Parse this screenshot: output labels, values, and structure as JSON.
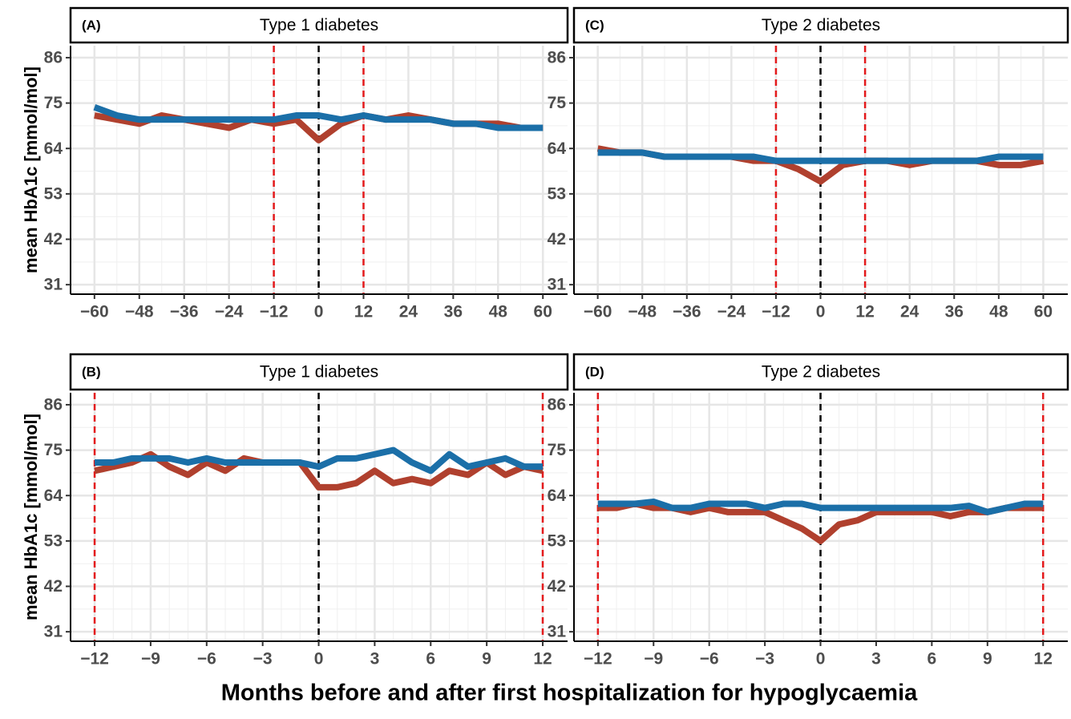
{
  "xlabel": "Months before and after first hospitalization for hypoglycaemia",
  "chart_data": [
    {
      "type": "line",
      "panel_label": "(A)",
      "title": "Type 1 diabetes",
      "ylabel": "mean HbA1c [mmol/mol]",
      "x": [
        -60,
        -54,
        -48,
        -42,
        -36,
        -30,
        -24,
        -18,
        -12,
        -6,
        0,
        6,
        12,
        18,
        24,
        30,
        36,
        42,
        48,
        54,
        60
      ],
      "series": [
        {
          "color": "#b0402e",
          "values": [
            72,
            71,
            70,
            72,
            71,
            70,
            69,
            71,
            70,
            71,
            66,
            70,
            72,
            71,
            72,
            71,
            70,
            70,
            70,
            69,
            69
          ]
        },
        {
          "color": "#1b6fa8",
          "values": [
            74,
            72,
            71,
            71,
            71,
            71,
            71,
            71,
            71,
            72,
            72,
            71,
            72,
            71,
            71,
            71,
            70,
            70,
            69,
            69,
            69
          ]
        }
      ],
      "xlim": [
        -66.4,
        66.6
      ],
      "xticks": [
        -60,
        -48,
        -36,
        -24,
        -12,
        0,
        12,
        24,
        36,
        48,
        60
      ],
      "ylim": [
        28.7,
        88.9
      ],
      "yticks": [
        31,
        42,
        53,
        64,
        75,
        86
      ],
      "grid": true,
      "vlines": [
        {
          "value": -12,
          "color": "#e41a1c"
        },
        {
          "value": 0,
          "color": "#000000"
        },
        {
          "value": 12,
          "color": "#e41a1c"
        }
      ]
    },
    {
      "type": "line",
      "panel_label": "(B)",
      "title": "Type 1 diabetes",
      "ylabel": "mean HbA1c [mmol/mol]",
      "x": [
        -12,
        -11,
        -10,
        -9,
        -8,
        -7,
        -6,
        -5,
        -4,
        -3,
        -2,
        -1,
        0,
        1,
        2,
        3,
        4,
        5,
        6,
        7,
        8,
        9,
        10,
        11,
        12
      ],
      "series": [
        {
          "color": "#b0402e",
          "values": [
            70,
            71,
            72,
            74,
            71,
            69,
            72,
            70,
            73,
            72,
            72,
            72,
            66,
            66,
            67,
            70,
            67,
            68,
            67,
            70,
            69,
            72,
            69,
            71,
            70
          ]
        },
        {
          "color": "#1b6fa8",
          "values": [
            72,
            72,
            73,
            73,
            73,
            72,
            73,
            72,
            72,
            72,
            72,
            72,
            71,
            73,
            73,
            74,
            75,
            72,
            70,
            74,
            71,
            72,
            73,
            71,
            71
          ]
        }
      ],
      "xlim": [
        -13.29,
        13.33
      ],
      "xticks": [
        -12,
        -9,
        -6,
        -3,
        0,
        3,
        6,
        9,
        12
      ],
      "ylim": [
        28.7,
        88.9
      ],
      "yticks": [
        31,
        42,
        53,
        64,
        75,
        86
      ],
      "grid": true,
      "vlines": [
        {
          "value": -12,
          "color": "#e41a1c"
        },
        {
          "value": 0,
          "color": "#000000"
        },
        {
          "value": 12,
          "color": "#e41a1c"
        }
      ]
    },
    {
      "type": "line",
      "panel_label": "(C)",
      "title": "Type 2 diabetes",
      "x": [
        -60,
        -54,
        -48,
        -42,
        -36,
        -30,
        -24,
        -18,
        -12,
        -6,
        0,
        6,
        12,
        18,
        24,
        30,
        36,
        42,
        48,
        54,
        60
      ],
      "series": [
        {
          "color": "#b0402e",
          "values": [
            64,
            63,
            63,
            62,
            62,
            62,
            62,
            61,
            61,
            59,
            56,
            60,
            61,
            61,
            60,
            61,
            61,
            61,
            60,
            60,
            61
          ]
        },
        {
          "color": "#1b6fa8",
          "values": [
            63,
            63,
            63,
            62,
            62,
            62,
            62,
            62,
            61,
            61,
            61,
            61,
            61,
            61,
            61,
            61,
            61,
            61,
            62,
            62,
            62
          ]
        }
      ],
      "xlim": [
        -66.4,
        66.6
      ],
      "xticks": [
        -60,
        -48,
        -36,
        -24,
        -12,
        0,
        12,
        24,
        36,
        48,
        60
      ],
      "ylim": [
        28.7,
        88.9
      ],
      "yticks": [
        31,
        42,
        53,
        64,
        75,
        86
      ],
      "grid": true,
      "vlines": [
        {
          "value": -12,
          "color": "#e41a1c"
        },
        {
          "value": 0,
          "color": "#000000"
        },
        {
          "value": 12,
          "color": "#e41a1c"
        }
      ]
    },
    {
      "type": "line",
      "panel_label": "(D)",
      "title": "Type 2 diabetes",
      "x": [
        -12,
        -11,
        -10,
        -9,
        -8,
        -7,
        -6,
        -5,
        -4,
        -3,
        -2,
        -1,
        0,
        1,
        2,
        3,
        4,
        5,
        6,
        7,
        8,
        9,
        10,
        11,
        12
      ],
      "series": [
        {
          "color": "#b0402e",
          "values": [
            61,
            61,
            62,
            61,
            61,
            60,
            61,
            60,
            60,
            60,
            58,
            56,
            53,
            57,
            58,
            60,
            60,
            60,
            60,
            59,
            60,
            60,
            61,
            61,
            61
          ]
        },
        {
          "color": "#1b6fa8",
          "values": [
            62,
            62,
            62,
            62.5,
            61,
            61,
            62,
            62,
            62,
            61,
            62,
            62,
            61,
            61,
            61,
            61,
            61,
            61,
            61,
            61,
            61.5,
            60,
            61,
            62,
            62
          ]
        }
      ],
      "xlim": [
        -13.29,
        13.33
      ],
      "xticks": [
        -12,
        -9,
        -6,
        -3,
        0,
        3,
        6,
        9,
        12
      ],
      "ylim": [
        28.7,
        88.9
      ],
      "yticks": [
        31,
        42,
        53,
        64,
        75,
        86
      ],
      "grid": true,
      "vlines": [
        {
          "value": -12,
          "color": "#e41a1c"
        },
        {
          "value": 0,
          "color": "#000000"
        },
        {
          "value": 12,
          "color": "#e41a1c"
        }
      ]
    }
  ]
}
